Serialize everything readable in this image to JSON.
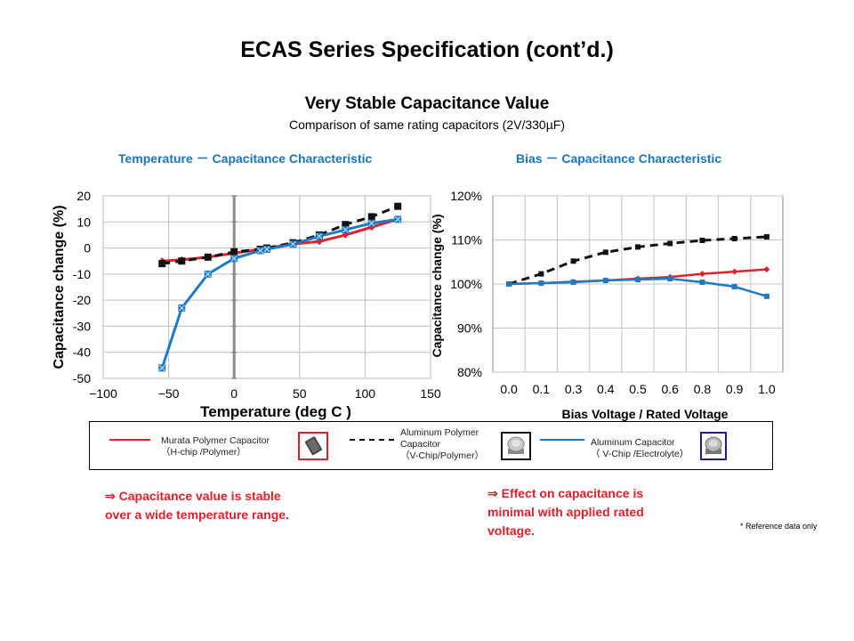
{
  "title": "ECAS Series Specification (cont’d.)",
  "section": {
    "title": "Very Stable Capacitance Value",
    "subtitle": "Comparison of same rating capacitors (2V/330µF)"
  },
  "colors": {
    "murata": "#e0202a",
    "polymer": "#111111",
    "aluminum": "#1e7ac2",
    "heading": "#1a75bc",
    "note": "#e0202a"
  },
  "chart_data": [
    {
      "type": "line",
      "heading": "Temperature － Capacitance  Characteristic",
      "title": "",
      "xlabel": "Temperature  (deg C )",
      "ylabel": "Capacitance change (%)",
      "xlim": [
        -100,
        150
      ],
      "ylim": [
        -50,
        20
      ],
      "xticks": [
        -100,
        -50,
        0,
        50,
        100,
        150
      ],
      "xtick_labels": [
        "−100",
        "−50",
        "0",
        "50",
        "100",
        "150"
      ],
      "yticks": [
        20,
        10,
        0,
        -10,
        -20,
        -30,
        -40,
        -50
      ],
      "ytick_labels": [
        "20",
        "10",
        "0",
        "-10",
        "-20",
        "-30",
        "-40",
        "-50"
      ],
      "grid": true,
      "series": [
        {
          "name": "Murata Polymer Capacitor",
          "x": [
            -55,
            -40,
            -20,
            0,
            20,
            25,
            45,
            65,
            85,
            105,
            125
          ],
          "y": [
            -5,
            -4.5,
            -3.5,
            -2,
            -0.5,
            0,
            1.5,
            2.5,
            5,
            8,
            11
          ]
        },
        {
          "name": "Aluminum Polymer Capacitor",
          "x": [
            -55,
            -40,
            -20,
            0,
            20,
            25,
            45,
            65,
            85,
            105,
            125
          ],
          "y": [
            -6,
            -5,
            -3.5,
            -1.5,
            -0.5,
            0,
            2,
            5,
            9,
            12,
            16
          ]
        },
        {
          "name": "Aluminum Capacitor",
          "x": [
            -55,
            -40,
            -20,
            0,
            20,
            25,
            45,
            65,
            85,
            105,
            125
          ],
          "y": [
            -46,
            -23,
            -10,
            -4,
            -1,
            -0.5,
            1.5,
            4.5,
            7,
            9.5,
            11
          ]
        }
      ]
    },
    {
      "type": "line",
      "heading": "Bias － Capacitance  Characteristic",
      "title": "",
      "xlabel": "Bias  Voltage / Rated Voltage",
      "ylabel": "Capacitance change (%)",
      "categories": [
        "0.0",
        "0.1",
        "0.3",
        "0.4",
        "0.5",
        "0.6",
        "0.8",
        "0.9",
        "1.0"
      ],
      "yticks": [
        120,
        110,
        100,
        90,
        80
      ],
      "ytick_labels": [
        "120%",
        "110%",
        "100%",
        "90%",
        "80%"
      ],
      "ylim": [
        80,
        120
      ],
      "grid": true,
      "series": [
        {
          "name": "Murata Polymer Capacitor",
          "values": [
            100,
            100.2,
            100.5,
            100.8,
            101.2,
            101.6,
            102.3,
            102.8,
            103.3
          ]
        },
        {
          "name": "Aluminum Polymer Capacitor",
          "values": [
            100,
            102.3,
            105.2,
            107.2,
            108.4,
            109.2,
            109.9,
            110.3,
            110.7
          ]
        },
        {
          "name": "Aluminum Capacitor",
          "values": [
            100,
            100.2,
            100.4,
            100.8,
            101,
            101.2,
            100.4,
            99.4,
            97.2
          ]
        }
      ]
    }
  ],
  "legend": [
    {
      "line1": "Murata Polymer Capacitor",
      "line2": "（H-chip /Polymer）"
    },
    {
      "line1": "Aluminum  Polymer",
      "line2": "Capacitor",
      "line3": "（V-Chip/Polymer）"
    },
    {
      "line1": "Aluminum Capacitor",
      "line2": "（ V-Chip /Electrolyte）"
    }
  ],
  "notes": {
    "left": [
      "⇒ Capacitance  value is stable",
      "over a wide temperature range."
    ],
    "right": [
      "⇒ Effect on capacitance is",
      "minimal  with applied rated",
      "voltage."
    ],
    "reference": "* Reference data only"
  }
}
